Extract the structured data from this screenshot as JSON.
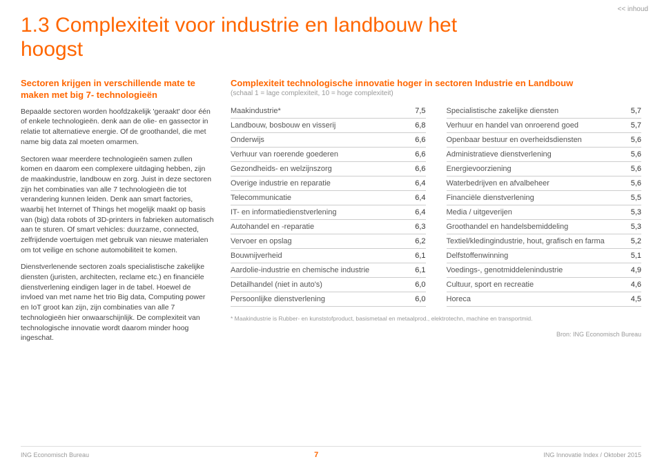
{
  "nav": {
    "back": "<< inhoud"
  },
  "title": "1.3 Complexiteit voor industrie en landbouw het hoogst",
  "left": {
    "subhead": "Sectoren krijgen in verschillende mate te maken met big 7- technologieën",
    "p1": "Bepaalde sectoren worden hoofdzakelijk 'geraakt' door één of enkele technologieën. denk aan de olie- en gassector in relatie tot alternatieve energie. Of de groothandel, die met name big data zal moeten omarmen.",
    "p2": "Sectoren waar meerdere technologieën samen zullen komen en daarom een complexere uitdaging hebben, zijn de maakindustrie, landbouw en zorg. Juist in deze sectoren zijn het combinaties van alle 7 technologieën die tot verandering kunnen leiden. Denk aan smart factories, waarbij het Internet of Things het mogelijk maakt op basis van (big) data robots of 3D-printers in fabrieken automatisch aan te sturen. Of smart vehicles: duurzame, connected, zelfrijdende voertuigen met gebruik van nieuwe materialen om tot veilige en schone automobiliteit te komen.",
    "p3": "Dienstverlenende sectoren zoals specialistische zakelijke diensten (juristen, architecten, reclame etc.) en financiële dienstverlening eindigen lager in de tabel. Hoewel de invloed van met name het trio Big data, Computing power en IoT groot kan zijn, zijn combinaties van alle 7 technologieën hier onwaarschijnlijk. De complexiteit van technologische innovatie wordt daarom minder hoog ingeschat."
  },
  "chart": {
    "title": "Complexiteit technologische innovatie hoger in sectoren Industrie en Landbouw",
    "subtitle": "(schaal 1 = lage complexiteit, 10 = hoge complexiteit)",
    "table1": [
      {
        "label": "Maakindustrie*",
        "value": "7,5"
      },
      {
        "label": "Landbouw, bosbouw en visserij",
        "value": "6,8"
      },
      {
        "label": "Onderwijs",
        "value": "6,6"
      },
      {
        "label": "Verhuur van roerende goederen",
        "value": "6,6"
      },
      {
        "label": "Gezondheids- en welzijnszorg",
        "value": "6,6"
      },
      {
        "label": "Overige industrie en reparatie",
        "value": "6,4"
      },
      {
        "label": "Telecommunicatie",
        "value": "6,4"
      },
      {
        "label": "IT- en informatiedienstverlening",
        "value": "6,4"
      },
      {
        "label": "Autohandel en -reparatie",
        "value": "6,3"
      },
      {
        "label": "Vervoer en opslag",
        "value": "6,2"
      },
      {
        "label": "Bouwnijverheid",
        "value": "6,1"
      },
      {
        "label": "Aardolie-industrie en chemische industrie",
        "value": "6,1"
      },
      {
        "label": "Detailhandel (niet in auto's)",
        "value": "6,0"
      },
      {
        "label": "Persoonlijke dienstverlening",
        "value": "6,0"
      }
    ],
    "table2": [
      {
        "label": "Specialistische zakelijke diensten",
        "value": "5,7"
      },
      {
        "label": "Verhuur en handel van onroerend goed",
        "value": "5,7"
      },
      {
        "label": "Openbaar bestuur en overheidsdiensten",
        "value": "5,6"
      },
      {
        "label": "Administratieve dienstverlening",
        "value": "5,6"
      },
      {
        "label": "Energievoorziening",
        "value": "5,6"
      },
      {
        "label": "Waterbedrijven en afvalbeheer",
        "value": "5,6"
      },
      {
        "label": "Financiële dienstverlening",
        "value": "5,5"
      },
      {
        "label": "Media / uitgeverijen",
        "value": "5,3"
      },
      {
        "label": "Groothandel en handelsbemiddeling",
        "value": "5,3"
      },
      {
        "label": "Textiel/kledingindustrie, hout, grafisch en farma",
        "value": "5,2"
      },
      {
        "label": "Delfstoffenwinning",
        "value": "5,1"
      },
      {
        "label": "Voedings-, genotmiddelenindustrie",
        "value": "4,9"
      },
      {
        "label": "Cultuur, sport en recreatie",
        "value": "4,6"
      },
      {
        "label": "Horeca",
        "value": "4,5"
      }
    ],
    "footnote": "* Maakindustrie is Rubber- en kunststofproduct, basismetaal en metaalprod., elektrotechn, machine en transportmid.",
    "source": "Bron: ING Economisch Bureau"
  },
  "footer": {
    "left": "ING Economisch Bureau",
    "pagenum": "7",
    "right": "ING Innovatie Index  /  Oktober 2015"
  },
  "colors": {
    "accent": "#ff6600",
    "text": "#444444",
    "muted": "#999999",
    "border": "#cccccc"
  }
}
